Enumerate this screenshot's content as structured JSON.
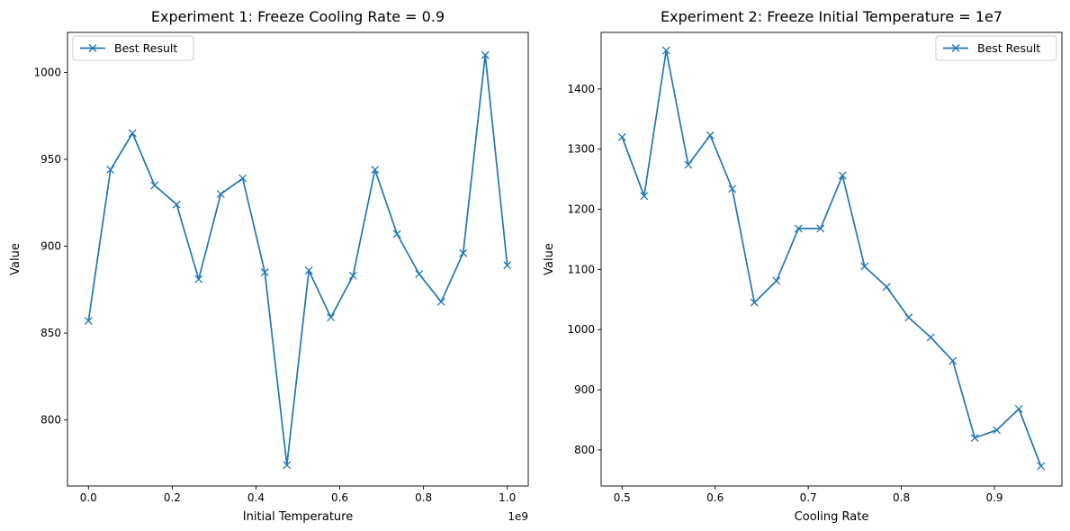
{
  "chart_data": [
    {
      "type": "line",
      "title": "Experiment 1: Freeze Cooling Rate = 0.9",
      "xlabel": "Initial Temperature",
      "ylabel": "Value",
      "x_offset_text": "1e9",
      "xlim": [
        -0.05,
        1.05
      ],
      "ylim": [
        762,
        1023
      ],
      "xticks": [
        0.0,
        0.2,
        0.4,
        0.6,
        0.8,
        1.0
      ],
      "xtick_labels": [
        "0.0",
        "0.2",
        "0.4",
        "0.6",
        "0.8",
        "1.0"
      ],
      "yticks": [
        800,
        850,
        900,
        950,
        1000
      ],
      "ytick_labels": [
        "800",
        "850",
        "900",
        "950",
        "1000"
      ],
      "legend_position": "upper left",
      "marker": "x",
      "color": "#1f77b4",
      "series": [
        {
          "name": "Best Result",
          "x": [
            0.0,
            0.0526,
            0.1053,
            0.1579,
            0.2105,
            0.2632,
            0.3158,
            0.3684,
            0.4211,
            0.4737,
            0.5263,
            0.5789,
            0.6316,
            0.6842,
            0.7368,
            0.7895,
            0.8421,
            0.8947,
            0.9474,
            1.0
          ],
          "values": [
            857,
            944,
            965,
            935,
            924,
            881,
            930,
            939,
            885,
            774,
            886,
            859,
            883,
            944,
            907,
            884,
            868,
            896,
            1010,
            889
          ]
        }
      ]
    },
    {
      "type": "line",
      "title": "Experiment 2: Freeze Initial Temperature = 1e7",
      "xlabel": "Cooling Rate",
      "ylabel": "Value",
      "xlim": [
        0.4775,
        0.9725
      ],
      "ylim": [
        740,
        1494
      ],
      "xticks": [
        0.5,
        0.6,
        0.7,
        0.8,
        0.9
      ],
      "xtick_labels": [
        "0.5",
        "0.6",
        "0.7",
        "0.8",
        "0.9"
      ],
      "yticks": [
        800,
        900,
        1000,
        1100,
        1200,
        1300,
        1400
      ],
      "ytick_labels": [
        "800",
        "900",
        "1000",
        "1100",
        "1200",
        "1300",
        "1400"
      ],
      "legend_position": "upper right",
      "marker": "x",
      "color": "#1f77b4",
      "series": [
        {
          "name": "Best Result",
          "x": [
            0.5,
            0.5237,
            0.5474,
            0.5711,
            0.5947,
            0.6184,
            0.6421,
            0.6658,
            0.6895,
            0.7132,
            0.7368,
            0.7605,
            0.7842,
            0.8079,
            0.8316,
            0.8553,
            0.8789,
            0.9026,
            0.9263,
            0.95
          ],
          "values": [
            1320,
            1222,
            1464,
            1274,
            1323,
            1234,
            1045,
            1081,
            1168,
            1168,
            1256,
            1105,
            1071,
            1020,
            987,
            948,
            820,
            833,
            868,
            773
          ]
        }
      ]
    }
  ]
}
